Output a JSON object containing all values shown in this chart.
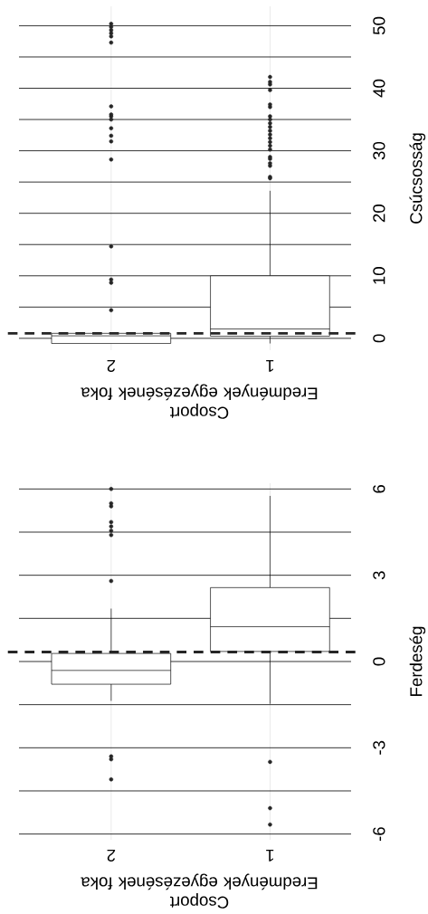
{
  "chart_data": [
    {
      "type": "box",
      "categories": [
        "2",
        "1"
      ],
      "xlabel": "Csoport Eredmények egyezésének foka",
      "ylabel": "Csúcsosság",
      "ylim": [
        -1.9,
        53.1
      ],
      "yticks": [
        0,
        {
          "value": 5,
          "label": null
        },
        10,
        {
          "value": 15,
          "label": null
        },
        20,
        {
          "value": 25,
          "label": null
        },
        30,
        {
          "value": 35,
          "label": null
        },
        40,
        {
          "value": 45,
          "label": null
        },
        50
      ],
      "grid": true,
      "marker": "circle",
      "ref_lines": [
        {
          "axis": "y",
          "value": 0.8,
          "line_style": "dashed"
        }
      ],
      "boxes": [
        {
          "low": -0.82,
          "q1": -0.82,
          "median": 0.4,
          "q3": 0.8,
          "high": 0.8,
          "outliers": [
            4.5,
            8.9,
            9.4,
            14.7,
            28.6,
            31.5,
            32.4,
            33.6,
            35.0,
            35.5,
            35.8,
            37.1,
            47.3,
            48.3,
            48.8,
            49.3,
            49.8,
            50.3
          ]
        },
        {
          "low": -0.82,
          "q1": 0.34,
          "median": 1.5,
          "q3": 10.0,
          "high": 23.6,
          "outliers": [
            25.6,
            25.8,
            27.6,
            28.0,
            28.7,
            29.0,
            30.2,
            30.8,
            31.4,
            32.0,
            32.6,
            33.2,
            33.8,
            34.4,
            35.0,
            35.5,
            37.0,
            37.4,
            39.7,
            40.6,
            41.0,
            41.8
          ]
        }
      ]
    },
    {
      "type": "box",
      "categories": [
        "2",
        "1"
      ],
      "xlabel": "Csoport Eredmények egyezésének foka",
      "ylabel": "Ferdeség",
      "ylim": [
        -6.2,
        6.2
      ],
      "yticks": [
        -6,
        {
          "value": -4.5,
          "label": null
        },
        -3,
        {
          "value": -1.5,
          "label": null
        },
        0,
        {
          "value": 1.5,
          "label": null
        },
        3,
        {
          "value": 4.5,
          "label": null
        },
        6
      ],
      "grid": true,
      "marker": "circle",
      "ref_lines": [
        {
          "axis": "y",
          "value": 0.33,
          "line_style": "dashed"
        }
      ],
      "boxes": [
        {
          "low": -1.37,
          "q1": -0.79,
          "median": -0.31,
          "q3": 0.28,
          "high": 1.84,
          "outliers": [
            6.0,
            5.5,
            5.4,
            4.85,
            4.7,
            4.55,
            4.4,
            2.8,
            -3.3,
            -3.4,
            -4.1
          ]
        },
        {
          "low": -1.47,
          "q1": 0.35,
          "median": 1.21,
          "q3": 2.57,
          "high": 5.76,
          "outliers": [
            -3.49,
            -5.1,
            -5.67
          ]
        }
      ]
    }
  ]
}
